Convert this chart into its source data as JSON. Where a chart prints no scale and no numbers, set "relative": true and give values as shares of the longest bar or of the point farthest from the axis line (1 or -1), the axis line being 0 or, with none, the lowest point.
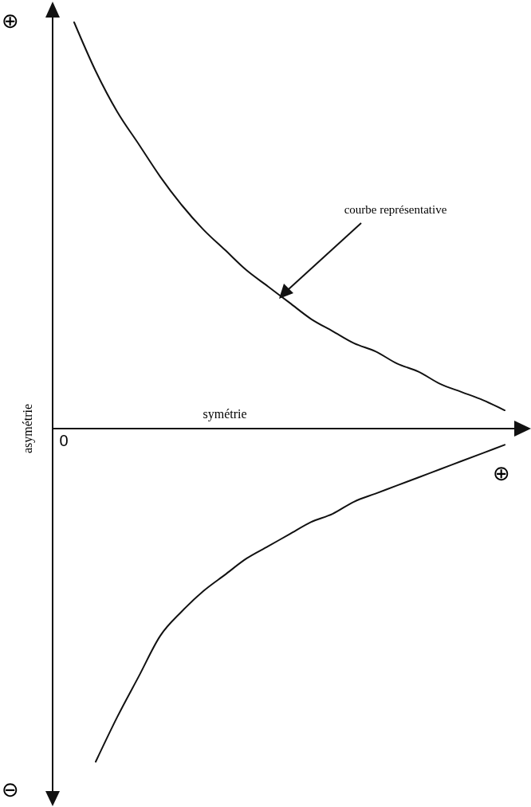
{
  "chart_data": {
    "type": "line",
    "relative": true,
    "xlabel": "symétrie",
    "ylabel": "asymétrie",
    "categories": [
      null,
      null,
      null,
      null,
      null,
      null,
      null,
      null,
      null,
      null,
      null,
      null,
      null,
      null,
      null,
      null,
      null,
      null,
      null,
      null,
      null,
      null,
      null
    ],
    "series": [
      {
        "color": "#111111",
        "values": [
          null,
          1.0,
          0.88,
          0.78,
          0.7,
          0.62,
          0.55,
          0.49,
          0.44,
          0.39,
          0.35,
          0.31,
          0.27,
          0.24,
          0.21,
          0.19,
          0.16,
          0.14,
          0.11,
          0.09,
          0.07,
          0.045,
          null
        ]
      },
      {
        "color": "#111111",
        "values": [
          null,
          null,
          -0.82,
          -0.71,
          -0.61,
          -0.51,
          -0.45,
          -0.4,
          -0.36,
          -0.32,
          -0.29,
          -0.26,
          -0.23,
          -0.21,
          -0.18,
          -0.16,
          -0.14,
          -0.12,
          -0.1,
          -0.08,
          -0.06,
          -0.04,
          null
        ]
      }
    ],
    "annotations": [
      "courbe représentative",
      "0",
      "⊕",
      "⊕",
      "⊖"
    ],
    "grid": false,
    "marker": "none",
    "line_style": "solid"
  }
}
